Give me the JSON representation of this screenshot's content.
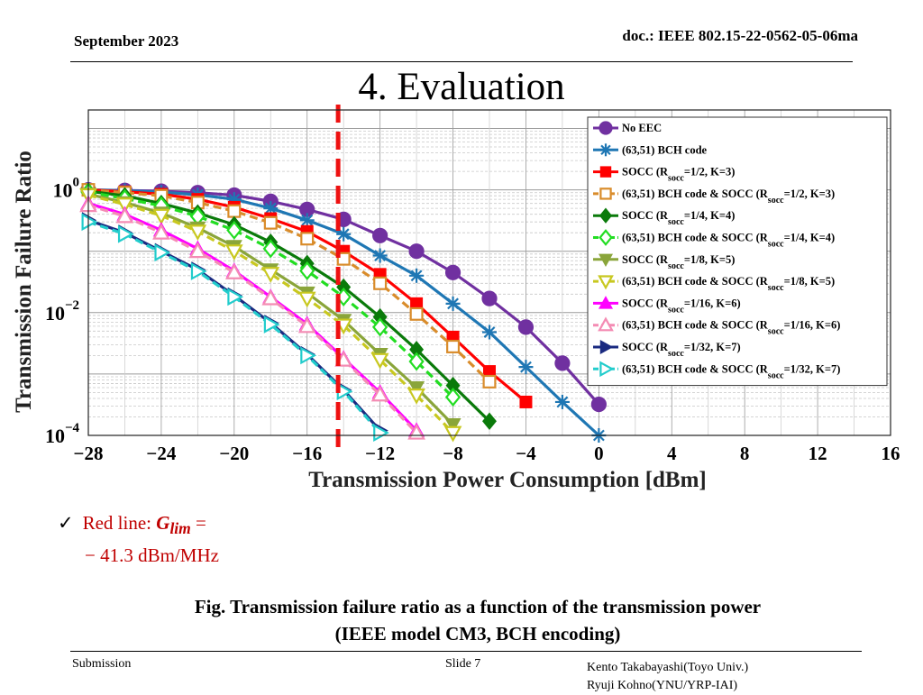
{
  "header": {
    "date": "September 2023",
    "doc": "doc.: IEEE 802.15-22-0562-05-06ma"
  },
  "title": "4. Evaluation",
  "note": {
    "check": "✓",
    "prefix": "Red line: ",
    "symbol": "G",
    "subscript": "lim",
    "equals": " =",
    "value": "− 41.3 dBm/MHz"
  },
  "caption": {
    "line1": "Fig. Transmission failure ratio as a function of the transmission power",
    "line2": "(IEEE model CM3,  BCH encoding)"
  },
  "footer": {
    "submission": "Submission",
    "slide": "Slide 7",
    "author1": "Kento Takabayashi(Toyo Univ.)",
    "author2": "Ryuji Kohno(YNU/YRP-IAI)"
  },
  "chart_data": {
    "type": "line",
    "xlabel": "Transmission Power Consumption [dBm]",
    "ylabel": "Transmission Failure Ratio",
    "xlim": [
      -28,
      16
    ],
    "ylim": [
      0.0001,
      20
    ],
    "yscale": "log",
    "grid": true,
    "legend_position": "top-right",
    "xticks": [
      -28,
      -24,
      -20,
      -16,
      -12,
      -8,
      -4,
      0,
      4,
      8,
      12,
      16
    ],
    "xtick_labels": [
      "−28",
      "−24",
      "−20",
      "−16",
      "−12",
      "−8",
      "−4",
      "0",
      "4",
      "8",
      "12",
      "16"
    ],
    "yticks": [
      {
        "value": 1,
        "base": "10",
        "exp": "0"
      },
      {
        "value": 0.01,
        "base": "10",
        "exp": "−2"
      },
      {
        "value": 0.0001,
        "base": "10",
        "exp": "−4"
      }
    ],
    "vline": {
      "x": -14.3,
      "color": "#ee1111"
    },
    "series": [
      {
        "name_main": "No EEC",
        "name_sub": "",
        "name_tail": "",
        "color": "#7030a0",
        "marker": "circle",
        "dashed": false,
        "x": [
          -28,
          -26,
          -24,
          -22,
          -20,
          -18,
          -16,
          -14,
          -12,
          -10,
          -8,
          -6,
          -4,
          -2,
          0
        ],
        "y": [
          1.0,
          0.98,
          0.95,
          0.9,
          0.82,
          0.65,
          0.48,
          0.33,
          0.18,
          0.1,
          0.045,
          0.017,
          0.0058,
          0.0015,
          0.00032
        ]
      },
      {
        "name_main": "(63,51) BCH code",
        "name_sub": "",
        "name_tail": "",
        "color": "#1f77b4",
        "marker": "star",
        "dashed": false,
        "x": [
          -28,
          -26,
          -24,
          -22,
          -20,
          -18,
          -16,
          -14,
          -12,
          -10,
          -8,
          -6,
          -4,
          -2,
          0
        ],
        "y": [
          1.0,
          0.97,
          0.92,
          0.83,
          0.7,
          0.5,
          0.32,
          0.19,
          0.085,
          0.04,
          0.014,
          0.0048,
          0.0013,
          0.00035,
          0.0001
        ]
      },
      {
        "name_main": "SOCC (R",
        "name_sub": "socc",
        "name_tail": "=1/2, K=3)",
        "color": "#ff0000",
        "marker": "square",
        "dashed": false,
        "x": [
          -28,
          -26,
          -24,
          -22,
          -20,
          -18,
          -16,
          -14,
          -12,
          -10,
          -8,
          -6,
          -4
        ],
        "y": [
          1.0,
          0.93,
          0.85,
          0.7,
          0.52,
          0.34,
          0.21,
          0.1,
          0.042,
          0.014,
          0.004,
          0.0011,
          0.00035
        ]
      },
      {
        "name_main": "(63,51) BCH code & SOCC (R",
        "name_sub": "socc",
        "name_tail": "=1/2, K=3)",
        "color": "#d98c2b",
        "marker": "square-open",
        "dashed": true,
        "x": [
          -28,
          -26,
          -24,
          -22,
          -20,
          -18,
          -16,
          -14,
          -12,
          -10,
          -8,
          -6
        ],
        "y": [
          1.0,
          0.9,
          0.8,
          0.62,
          0.45,
          0.29,
          0.16,
          0.075,
          0.03,
          0.0095,
          0.0028,
          0.00075
        ]
      },
      {
        "name_main": "SOCC (R",
        "name_sub": "socc",
        "name_tail": "=1/4, K=4)",
        "color": "#0a7a0a",
        "marker": "diamond",
        "dashed": false,
        "x": [
          -28,
          -26,
          -24,
          -22,
          -20,
          -18,
          -16,
          -14,
          -12,
          -10,
          -8,
          -6
        ],
        "y": [
          0.95,
          0.8,
          0.6,
          0.42,
          0.27,
          0.14,
          0.063,
          0.026,
          0.0085,
          0.0025,
          0.00065,
          0.00017
        ]
      },
      {
        "name_main": "(63,51) BCH code & SOCC (R",
        "name_sub": "socc",
        "name_tail": "=1/4, K=4)",
        "color": "#22dd22",
        "marker": "diamond-open",
        "dashed": true,
        "x": [
          -28,
          -26,
          -24,
          -22,
          -20,
          -18,
          -16,
          -14,
          -12,
          -10,
          -8
        ],
        "y": [
          0.92,
          0.72,
          0.55,
          0.37,
          0.22,
          0.11,
          0.048,
          0.018,
          0.0058,
          0.0016,
          0.00042
        ]
      },
      {
        "name_main": "SOCC (R",
        "name_sub": "socc",
        "name_tail": "=1/8, K=5)",
        "color": "#8aa53a",
        "marker": "triangle-down",
        "dashed": false,
        "x": [
          -28,
          -26,
          -24,
          -22,
          -20,
          -18,
          -16,
          -14,
          -12,
          -10,
          -8
        ],
        "y": [
          0.85,
          0.62,
          0.42,
          0.24,
          0.12,
          0.05,
          0.021,
          0.0075,
          0.0021,
          0.0006,
          0.00015
        ]
      },
      {
        "name_main": "(63,51) BCH code & SOCC (R",
        "name_sub": "socc",
        "name_tail": "=1/8, K=5)",
        "color": "#c8c820",
        "marker": "triangle-down-open",
        "dashed": true,
        "x": [
          -28,
          -26,
          -24,
          -22,
          -20,
          -18,
          -16,
          -14,
          -12,
          -10,
          -8
        ],
        "y": [
          0.82,
          0.58,
          0.38,
          0.21,
          0.1,
          0.043,
          0.017,
          0.0062,
          0.0017,
          0.00045,
          0.00011
        ]
      },
      {
        "name_main": "SOCC (R",
        "name_sub": "socc",
        "name_tail": "=1/16, K=6)",
        "color": "#ff00ff",
        "marker": "triangle",
        "dashed": false,
        "x": [
          -28,
          -26,
          -24,
          -22,
          -20,
          -18,
          -16,
          -14,
          -12,
          -10
        ],
        "y": [
          0.6,
          0.4,
          0.22,
          0.11,
          0.048,
          0.018,
          0.0065,
          0.0018,
          0.0005,
          0.00012
        ]
      },
      {
        "name_main": "(63,51) BCH code & SOCC (R",
        "name_sub": "socc",
        "name_tail": "=1/16, K=6)",
        "color": "#f48cb4",
        "marker": "triangle-open",
        "dashed": true,
        "x": [
          -28,
          -26,
          -24,
          -22,
          -20,
          -18,
          -16,
          -14,
          -12,
          -10
        ],
        "y": [
          0.56,
          0.37,
          0.2,
          0.1,
          0.045,
          0.017,
          0.006,
          0.0017,
          0.00046,
          0.00011
        ]
      },
      {
        "name_main": "SOCC (R",
        "name_sub": "socc",
        "name_tail": "=1/32, K=7)",
        "color": "#1a2a80",
        "marker": "triangle-right",
        "dashed": false,
        "x": [
          -28,
          -26,
          -24,
          -22,
          -20,
          -18,
          -16,
          -14,
          -12
        ],
        "y": [
          0.32,
          0.2,
          0.1,
          0.05,
          0.019,
          0.0068,
          0.0021,
          0.00055,
          0.00012
        ]
      },
      {
        "name_main": "(63,51) BCH code & SOCC (R",
        "name_sub": "socc",
        "name_tail": "=1/32, K=7)",
        "color": "#22cccc",
        "marker": "triangle-right-open",
        "dashed": true,
        "x": [
          -28,
          -26,
          -24,
          -22,
          -20,
          -18,
          -16,
          -14,
          -12
        ],
        "y": [
          0.3,
          0.19,
          0.095,
          0.047,
          0.018,
          0.0064,
          0.002,
          0.00052,
          0.00011
        ]
      }
    ]
  }
}
